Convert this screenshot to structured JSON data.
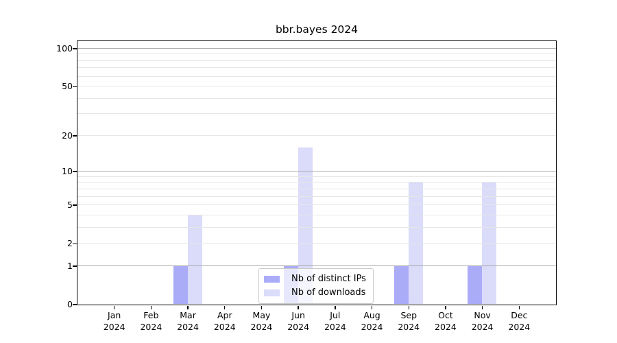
{
  "title": "bbr.bayes 2024",
  "chart_data": {
    "type": "bar",
    "title": "bbr.bayes 2024",
    "categories": [
      "Jan",
      "Feb",
      "Mar",
      "Apr",
      "May",
      "Jun",
      "Jul",
      "Aug",
      "Sep",
      "Oct",
      "Nov",
      "Dec"
    ],
    "year": "2024",
    "series": [
      {
        "name": "Nb of distinct IPs",
        "color": "#abacf8",
        "values": [
          0,
          0,
          1,
          0,
          0,
          1,
          0,
          0,
          1,
          0,
          1,
          0
        ]
      },
      {
        "name": "Nb of downloads",
        "color": "#dbdbfa",
        "values": [
          0,
          0,
          4,
          0,
          0,
          16,
          0,
          0,
          8,
          0,
          8,
          0
        ]
      }
    ],
    "yscale": "log1p",
    "ylim": [
      0,
      100
    ],
    "yticks": [
      0,
      1,
      2,
      5,
      10,
      20,
      50,
      100
    ],
    "major_gridlines": [
      1,
      10,
      100
    ],
    "minor_gridlines": [
      2,
      3,
      4,
      5,
      6,
      7,
      8,
      9,
      20,
      30,
      40,
      50,
      60,
      70,
      80,
      90
    ],
    "grid": "on",
    "legend_position": "lower center",
    "colors": {
      "spine": "#000000",
      "major_grid": "#ababab",
      "minor_grid": "#e6e6e6",
      "background": "#ffffff"
    }
  }
}
